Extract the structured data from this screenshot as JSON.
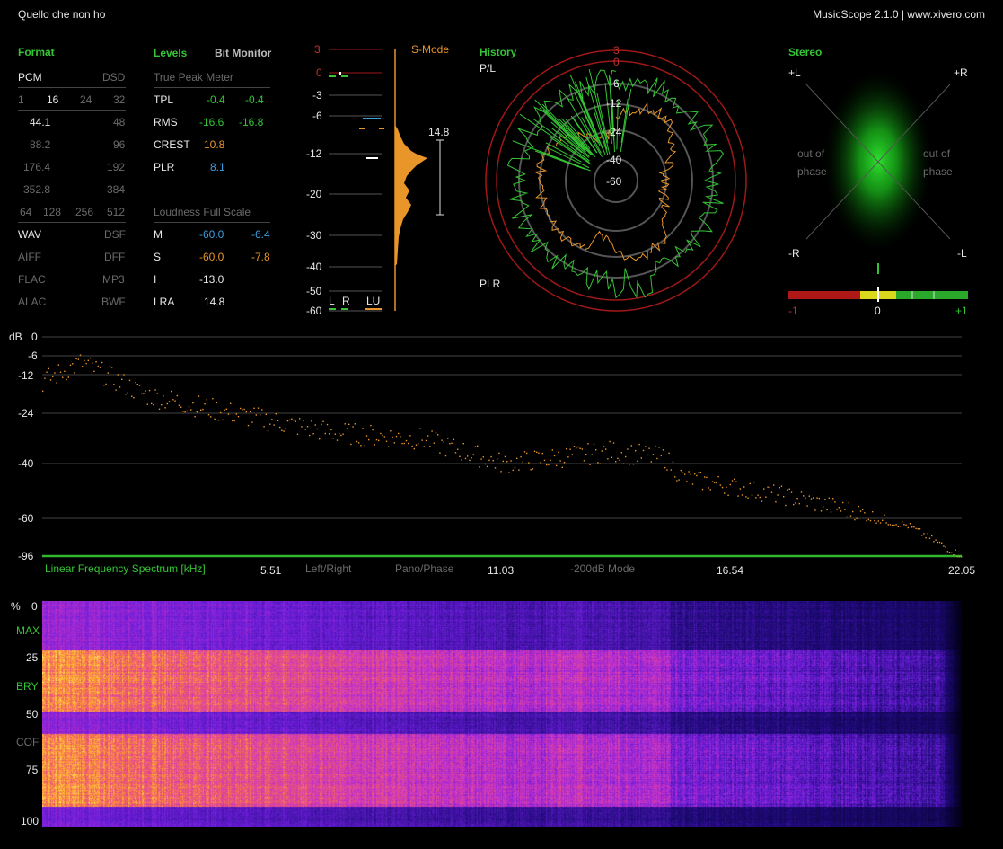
{
  "window": {
    "track": "Quello che non ho",
    "app": "MusicScope 2.1.0 | www.xivero.com"
  },
  "format": {
    "title": "Format",
    "pcm": "PCM",
    "dsd": "DSD",
    "bits": [
      "1",
      "16",
      "24",
      "32"
    ],
    "rates_pcm": [
      "44.1",
      "88.2",
      "176.4",
      "352.8"
    ],
    "rates_dsd": [
      "48",
      "96",
      "192",
      "384"
    ],
    "dsd_rates": [
      "64",
      "128",
      "256",
      "512"
    ],
    "files_left": [
      "WAV",
      "AIFF",
      "FLAC",
      "ALAC"
    ],
    "files_right": [
      "DSF",
      "DFF",
      "MP3",
      "BWF"
    ]
  },
  "levels": {
    "title": "Levels",
    "bitmon": "Bit Monitor",
    "tp_header": "True Peak Meter",
    "rows": [
      {
        "label": "TPL",
        "a": "-0.4",
        "b": "-0.4"
      },
      {
        "label": "RMS",
        "a": "-16.6",
        "b": "-16.8"
      },
      {
        "label": "CREST",
        "a": "10.8",
        "b": ""
      },
      {
        "label": "PLR",
        "a": "8.1",
        "b": ""
      }
    ],
    "lfs_header": "Loudness Full Scale",
    "lfs": [
      {
        "label": "M",
        "a": "-60.0",
        "b": "-6.4"
      },
      {
        "label": "S",
        "a": "-60.0",
        "b": "-7.8"
      },
      {
        "label": "I",
        "a": "-13.0",
        "b": ""
      },
      {
        "label": "LRA",
        "a": "14.8",
        "b": ""
      }
    ]
  },
  "meter": {
    "scale": [
      "3",
      "0",
      "-3",
      "-6",
      "-12",
      "-20",
      "-30",
      "-40",
      "-50",
      "-60"
    ],
    "mode": "S-Mode",
    "lra": "14.8",
    "ch_l": "L",
    "ch_r": "R",
    "ch_lu": "LU"
  },
  "history": {
    "title": "History",
    "pl": "P/L",
    "plr": "PLR",
    "rings": [
      "3",
      "0",
      "-6",
      "-12",
      "-24",
      "-40",
      "-60"
    ]
  },
  "stereo": {
    "title": "Stereo",
    "pl": "+L",
    "pr": "+R",
    "ml": "-R",
    "mr": "-L",
    "oop_l1": "out of",
    "oop_l2": "phase",
    "oop_r1": "out of",
    "oop_r2": "phase",
    "corr_min": "-1",
    "corr_mid": "0",
    "corr_max": "+1"
  },
  "spectrum": {
    "db_label": "dB",
    "db_ticks": [
      "0",
      "-6",
      "-12",
      "-24",
      "-40",
      "-60",
      "-96"
    ],
    "caption": "Linear Frequency Spectrum [kHz]",
    "freq_ticks": [
      "5.51",
      "11.03",
      "16.54",
      "22.05"
    ],
    "btn_lr": "Left/Right",
    "btn_pano": "Pano/Phase",
    "btn_mode": "-200dB Mode"
  },
  "spectrogram": {
    "pct": "%",
    "ticks": [
      "0",
      "25",
      "50",
      "75",
      "100"
    ],
    "marks": [
      "MAX",
      "BRY",
      "COF"
    ]
  },
  "colors": {
    "accent_green": "#35c435",
    "orange": "#e8952a",
    "blue": "#3c9fe0",
    "red": "#b01818"
  }
}
